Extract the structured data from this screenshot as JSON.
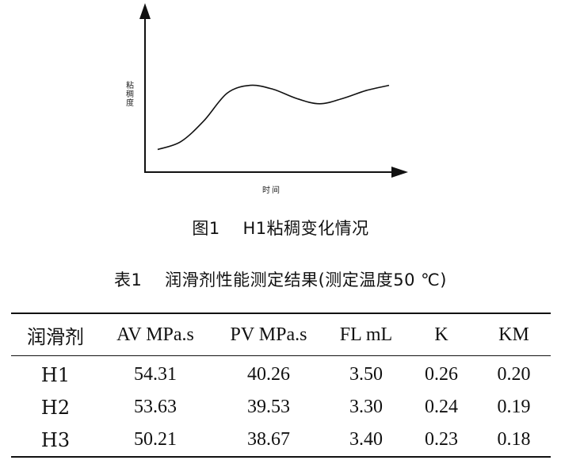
{
  "figure": {
    "ylabel": "粘稠度",
    "xlabel": "时间",
    "caption": "图1    H1粘稠变化情况"
  },
  "chart_data": {
    "type": "line",
    "title": "H1粘稠变化情况",
    "xlabel": "时间",
    "ylabel": "粘稠度",
    "series": [
      {
        "x": [
          0,
          1,
          2,
          3,
          4,
          5,
          6,
          7,
          8,
          9,
          10
        ],
        "values": [
          1.0,
          1.6,
          3.2,
          5.3,
          5.9,
          5.6,
          4.9,
          4.5,
          4.9,
          5.5,
          5.9
        ]
      }
    ],
    "xticks": false,
    "yticks": false,
    "grid": false
  },
  "table": {
    "caption": "表1    润滑剂性能测定结果(测定温度50 ℃)",
    "headers": [
      "润滑剂",
      "AV MPa.s",
      "PV MPa.s",
      "FL mL",
      "K",
      "KM"
    ],
    "rows": [
      [
        "H1",
        "54.31",
        "40.26",
        "3.50",
        "0.26",
        "0.20"
      ],
      [
        "H2",
        "53.63",
        "39.53",
        "3.30",
        "0.24",
        "0.19"
      ],
      [
        "H3",
        "50.21",
        "38.67",
        "3.40",
        "0.23",
        "0.18"
      ]
    ]
  }
}
